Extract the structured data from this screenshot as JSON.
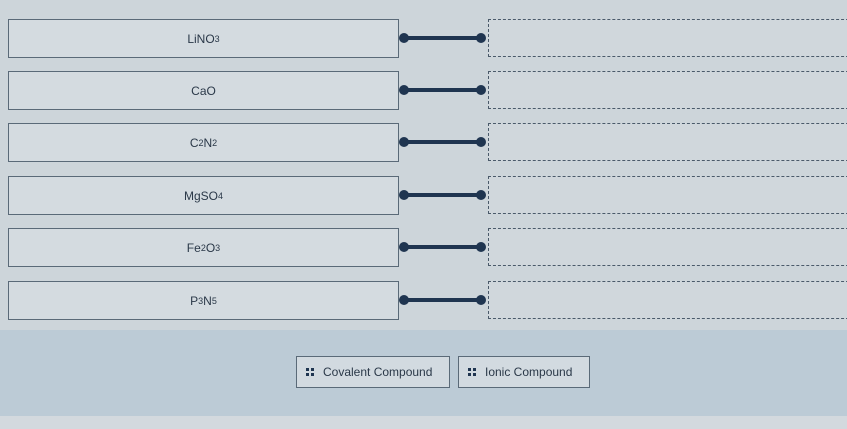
{
  "items": [
    {
      "parts": [
        "LiNO",
        "3"
      ]
    },
    {
      "parts": [
        "CaO"
      ]
    },
    {
      "parts": [
        "C",
        "2",
        "N",
        "2"
      ]
    },
    {
      "parts": [
        "MgSO",
        "4"
      ]
    },
    {
      "parts": [
        "Fe",
        "2",
        "O",
        "3"
      ]
    },
    {
      "parts": [
        "P",
        "3",
        "N",
        "5"
      ]
    }
  ],
  "choices": [
    {
      "label": "Covalent Compound",
      "icon": "drag-handle-icon"
    },
    {
      "label": "Ionic Compound",
      "icon": "drag-handle-icon"
    }
  ],
  "colors": {
    "connector": "#1f3550",
    "bank": "#bccbd6"
  }
}
